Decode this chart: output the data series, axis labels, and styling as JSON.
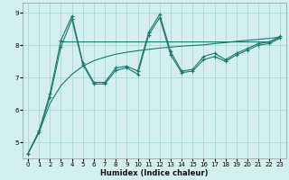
{
  "xlabel": "Humidex (Indice chaleur)",
  "bg_color": "#d4f0ee",
  "grid_color": "#aad8d4",
  "line_color": "#1a7a6e",
  "xlim": [
    -0.5,
    23.5
  ],
  "ylim": [
    4.5,
    9.3
  ],
  "xticks": [
    0,
    1,
    2,
    3,
    4,
    5,
    6,
    7,
    8,
    9,
    10,
    11,
    12,
    13,
    14,
    15,
    16,
    17,
    18,
    19,
    20,
    21,
    22,
    23
  ],
  "yticks": [
    5,
    6,
    7,
    8,
    9
  ],
  "line1_x": [
    0,
    1,
    2,
    3,
    4,
    5,
    6,
    7,
    8,
    9,
    10,
    11,
    12,
    13,
    14,
    15,
    16,
    17,
    18,
    19,
    20,
    21,
    22,
    23
  ],
  "line1_y": [
    4.65,
    5.35,
    6.5,
    8.15,
    8.9,
    7.45,
    6.85,
    6.85,
    7.3,
    7.35,
    7.2,
    8.4,
    8.95,
    7.8,
    7.2,
    7.25,
    7.65,
    7.75,
    7.55,
    7.75,
    7.9,
    8.05,
    8.1,
    8.28
  ],
  "line2_x": [
    0,
    1,
    2,
    3,
    4,
    5,
    6,
    7,
    8,
    9,
    10,
    11,
    12,
    13,
    14,
    15,
    16,
    17,
    18,
    19,
    20,
    21,
    22,
    23
  ],
  "line2_y": [
    4.65,
    5.3,
    6.4,
    7.95,
    8.8,
    7.4,
    6.8,
    6.8,
    7.22,
    7.3,
    7.1,
    8.32,
    8.85,
    7.7,
    7.15,
    7.2,
    7.55,
    7.65,
    7.5,
    7.7,
    7.85,
    8.0,
    8.05,
    8.22
  ],
  "flat_x": [
    3,
    4,
    5,
    6,
    7,
    8,
    9,
    10,
    11,
    12,
    13,
    14,
    15,
    16,
    17,
    18,
    19,
    20,
    21,
    22,
    23
  ],
  "flat_y": [
    8.1,
    8.1,
    8.1,
    8.1,
    8.1,
    8.1,
    8.1,
    8.1,
    8.1,
    8.1,
    8.1,
    8.1,
    8.1,
    8.1,
    8.1,
    8.1,
    8.1,
    8.1,
    8.1,
    8.1,
    8.25
  ],
  "smooth_x": [
    0,
    1,
    2,
    3,
    4,
    5,
    6,
    7,
    8,
    9,
    10,
    11,
    12,
    13,
    14,
    15,
    16,
    17,
    18,
    19,
    20,
    21,
    22,
    23
  ],
  "smooth_y": [
    4.65,
    5.3,
    6.2,
    6.75,
    7.1,
    7.35,
    7.52,
    7.63,
    7.72,
    7.78,
    7.83,
    7.87,
    7.91,
    7.94,
    7.97,
    7.99,
    8.01,
    8.05,
    8.08,
    8.12,
    8.15,
    8.18,
    8.21,
    8.25
  ],
  "xlabel_fontsize": 6.0,
  "tick_fontsize": 5.0
}
